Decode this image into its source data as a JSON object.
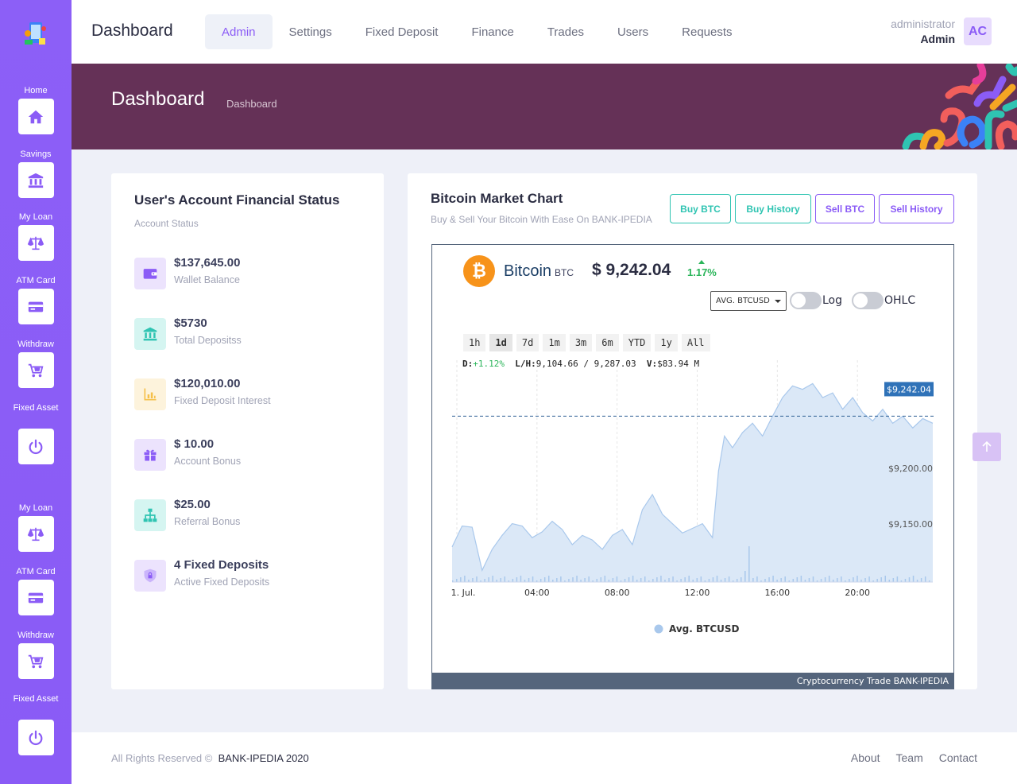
{
  "brand": "Dashboard",
  "nav": [
    "Admin",
    "Settings",
    "Fixed Deposit",
    "Finance",
    "Trades",
    "Users",
    "Requests"
  ],
  "nav_active": "Admin",
  "user": {
    "role": "administrator",
    "name": "Admin",
    "initials": "AC"
  },
  "banner": {
    "title": "Dashboard",
    "breadcrumb": "Dashboard"
  },
  "sidebar": [
    {
      "label": "Home",
      "icon": "home-icon"
    },
    {
      "label": "Savings",
      "icon": "bank-icon"
    },
    {
      "label": "My Loan",
      "icon": "scale-icon"
    },
    {
      "label": "ATM Card",
      "icon": "card-icon"
    },
    {
      "label": "Withdraw",
      "icon": "cart-icon"
    },
    {
      "label": "Fixed Asset",
      "icon": "power-icon"
    },
    {
      "label": "My Loan",
      "icon": "scale-icon"
    },
    {
      "label": "ATM Card",
      "icon": "card-icon"
    },
    {
      "label": "Withdraw",
      "icon": "cart-icon"
    },
    {
      "label": "Fixed Asset",
      "icon": "power-icon"
    }
  ],
  "account": {
    "title": "User's Account Financial Status",
    "subtitle": "Account Status",
    "stats": [
      {
        "value": "$137,645.00",
        "label": "Wallet Balance",
        "icon": "wallet-icon",
        "color": "#8b5cf6",
        "bg": "#ece3fd"
      },
      {
        "value": "$5730",
        "label": "Total Depositss",
        "icon": "bank-icon",
        "color": "#2fc4b2",
        "bg": "#d5f5f1"
      },
      {
        "value": "$120,010.00",
        "label": "Fixed Deposit Interest",
        "icon": "bar-chart-icon",
        "color": "#f5c04a",
        "bg": "#fdf3dc"
      },
      {
        "value": "$ 10.00",
        "label": "Account Bonus",
        "icon": "gift-icon",
        "color": "#8b5cf6",
        "bg": "#ece3fd"
      },
      {
        "value": "$25.00",
        "label": "Referral Bonus",
        "icon": "sitemap-icon",
        "color": "#2fc4b2",
        "bg": "#d5f5f1"
      },
      {
        "value": "4 Fixed Deposits",
        "label": "Active Fixed Deposits",
        "icon": "shield-lock-icon",
        "color": "#8b5cf6",
        "bg": "#ece3fd"
      }
    ]
  },
  "market": {
    "title": "Bitcoin Market Chart",
    "subtitle": "Buy & Sell Your Bitcoin With Ease On BANK-IPEDIA",
    "buttons": [
      "Buy BTC",
      "Buy History",
      "Sell BTC",
      "Sell History"
    ],
    "coin": "Bitcoin",
    "symbol": "BTC",
    "price": "$ 9,242.04",
    "change": "1.17%",
    "select": "AVG. BTCUSD",
    "toggles": [
      "Log",
      "OHLC"
    ],
    "ranges": [
      "1h",
      "1d",
      "7d",
      "1m",
      "3m",
      "6m",
      "YTD",
      "1y",
      "All"
    ],
    "range_active": "1d",
    "ohlc": {
      "d_label": "D:",
      "d_value": "+1.12%",
      "lh_label": "L/H:",
      "lh_value": "9,104.66 / 9,287.03",
      "v_label": "V:",
      "v_value": "$83.94 M"
    },
    "credit": "Cryptocurrency Trade BANK-IPEDIA"
  },
  "chart_data": {
    "type": "area",
    "title": "",
    "x_ticks": [
      "1. Jul.",
      "04:00",
      "08:00",
      "12:00",
      "16:00",
      "20:00"
    ],
    "y_ticks": [
      "$9,150.00",
      "$9,200.00"
    ],
    "ylim": [
      9100,
      9290
    ],
    "current_price_label": "$9,242.04",
    "current_price": 9242.04,
    "series": [
      {
        "name": "Avg. BTCUSD",
        "color": "#a9c8ec",
        "x_hours": [
          0,
          0.5,
          1,
          1.5,
          2,
          2.5,
          3,
          3.5,
          4,
          4.5,
          5,
          5.5,
          6,
          6.5,
          7,
          7.5,
          8,
          8.5,
          9,
          9.5,
          10,
          10.5,
          11,
          11.5,
          12,
          12.5,
          13,
          13.3,
          13.6,
          14,
          14.5,
          15,
          15.5,
          16,
          16.5,
          17,
          17.5,
          18,
          18.5,
          19,
          19.5,
          20,
          20.5,
          21,
          21.5,
          22,
          22.5,
          23,
          23.5,
          24
        ],
        "y": [
          9130,
          9148,
          9147,
          9110,
          9128,
          9140,
          9150,
          9148,
          9138,
          9143,
          9152,
          9145,
          9132,
          9140,
          9136,
          9128,
          9140,
          9145,
          9132,
          9162,
          9175,
          9158,
          9150,
          9142,
          9146,
          9150,
          9138,
          9195,
          9225,
          9215,
          9228,
          9236,
          9225,
          9242,
          9258,
          9268,
          9265,
          9270,
          9258,
          9262,
          9248,
          9258,
          9245,
          9238,
          9248,
          9236,
          9242,
          9232,
          9240,
          9236
        ]
      }
    ]
  },
  "footer": {
    "copyright": "All Rights Reserved ©",
    "company": "BANK-IPEDIA 2020",
    "links": [
      "About",
      "Team",
      "Contact"
    ]
  }
}
